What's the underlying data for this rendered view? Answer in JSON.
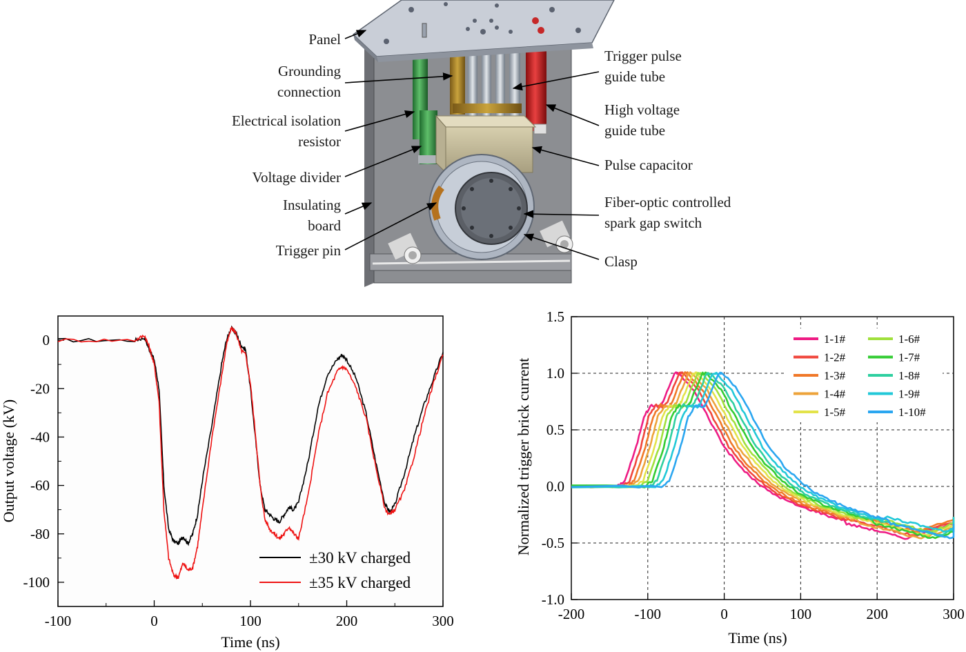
{
  "diagram": {
    "labels": [
      {
        "id": "panel",
        "text": "Panel"
      },
      {
        "id": "grounding-1",
        "text": "Grounding"
      },
      {
        "id": "grounding-2",
        "text": "connection"
      },
      {
        "id": "isolation-1",
        "text": "Electrical isolation"
      },
      {
        "id": "isolation-2",
        "text": "resistor"
      },
      {
        "id": "divider",
        "text": "Voltage divider"
      },
      {
        "id": "insulating-1",
        "text": "Insulating"
      },
      {
        "id": "insulating-2",
        "text": "board"
      },
      {
        "id": "trigger-pin",
        "text": "Trigger pin"
      },
      {
        "id": "trigger-tube-1",
        "text": "Trigger pulse"
      },
      {
        "id": "trigger-tube-2",
        "text": "guide tube"
      },
      {
        "id": "hv-tube-1",
        "text": "High voltage"
      },
      {
        "id": "hv-tube-2",
        "text": "guide tube"
      },
      {
        "id": "capacitor",
        "text": "Pulse capacitor"
      },
      {
        "id": "switch-1",
        "text": "Fiber-optic controlled"
      },
      {
        "id": "switch-2",
        "text": "spark gap switch"
      },
      {
        "id": "clasp",
        "text": "Clasp"
      }
    ]
  },
  "chart_data": [
    {
      "type": "line",
      "xlabel": "Time (ns)",
      "ylabel": "Output voltage (kV)",
      "xlim": [
        -100,
        300
      ],
      "ylim": [
        -110,
        10
      ],
      "xticks": [
        -100,
        0,
        100,
        200,
        300
      ],
      "yticks": [
        0,
        -20,
        -40,
        -60,
        -80,
        -100
      ],
      "grid": false,
      "legend_position": "bottom-right",
      "series": [
        {
          "name": "±30 kV charged",
          "color": "#000000",
          "x": [
            -100,
            -20,
            -10,
            -5,
            0,
            5,
            10,
            15,
            20,
            25,
            30,
            35,
            40,
            45,
            50,
            60,
            70,
            75,
            80,
            85,
            90,
            95,
            100,
            105,
            110,
            115,
            120,
            125,
            130,
            135,
            140,
            145,
            150,
            160,
            170,
            180,
            190,
            195,
            200,
            210,
            220,
            230,
            240,
            245,
            250,
            260,
            270,
            280,
            290,
            300
          ],
          "y": [
            0,
            0,
            1,
            -4,
            -8,
            -20,
            -60,
            -78,
            -83,
            -84,
            -81,
            -84,
            -80,
            -72,
            -58,
            -35,
            -10,
            0,
            5,
            3,
            -2,
            -4,
            -20,
            -40,
            -60,
            -70,
            -72,
            -74,
            -75,
            -72,
            -69,
            -70,
            -67,
            -50,
            -28,
            -14,
            -8,
            -6,
            -8,
            -16,
            -30,
            -50,
            -68,
            -71,
            -68,
            -55,
            -40,
            -27,
            -16,
            -5
          ]
        },
        {
          "name": "±35 kV charged",
          "color": "#ee1111",
          "x": [
            -100,
            -20,
            -10,
            -5,
            0,
            5,
            10,
            15,
            20,
            25,
            30,
            35,
            40,
            45,
            50,
            60,
            70,
            75,
            80,
            85,
            90,
            95,
            100,
            105,
            110,
            115,
            120,
            125,
            130,
            135,
            140,
            145,
            150,
            160,
            170,
            180,
            190,
            195,
            200,
            210,
            220,
            230,
            240,
            245,
            250,
            260,
            270,
            280,
            290,
            300
          ],
          "y": [
            0,
            0,
            2,
            -3,
            -10,
            -25,
            -70,
            -90,
            -97,
            -98,
            -92,
            -95,
            -94,
            -85,
            -70,
            -40,
            -15,
            -2,
            5,
            3,
            -4,
            -6,
            -18,
            -38,
            -60,
            -74,
            -78,
            -80,
            -82,
            -80,
            -77,
            -80,
            -82,
            -64,
            -40,
            -22,
            -13,
            -11,
            -12,
            -20,
            -32,
            -52,
            -70,
            -72,
            -70,
            -62,
            -48,
            -32,
            -18,
            -6
          ]
        }
      ]
    },
    {
      "type": "line",
      "xlabel": "Time (ns)",
      "ylabel": "Normalized trigger brick current",
      "xlim": [
        -200,
        300
      ],
      "ylim": [
        -1.0,
        1.5
      ],
      "xticks": [
        -200,
        -100,
        0,
        100,
        200,
        300
      ],
      "yticks": [
        1.5,
        1.0,
        0.5,
        0.0,
        -0.5,
        -1.0
      ],
      "ytick_labels": [
        "1.5",
        "1.0",
        "0.5",
        "0.0",
        "-0.5",
        "-1.0"
      ],
      "grid": true,
      "legend_position": "top-right",
      "series": [
        {
          "name": "1-1#",
          "color": "#ee1c84",
          "shift": 0
        },
        {
          "name": "1-2#",
          "color": "#f0463c",
          "shift": 6
        },
        {
          "name": "1-3#",
          "color": "#f07828",
          "shift": 12
        },
        {
          "name": "1-4#",
          "color": "#eda33a",
          "shift": 18
        },
        {
          "name": "1-5#",
          "color": "#e3e34a",
          "shift": 24
        },
        {
          "name": "1-6#",
          "color": "#a0e03c",
          "shift": 30
        },
        {
          "name": "1-7#",
          "color": "#33cc33",
          "shift": 36
        },
        {
          "name": "1-8#",
          "color": "#2ecfa0",
          "shift": 42
        },
        {
          "name": "1-9#",
          "color": "#22c8d8",
          "shift": 50
        },
        {
          "name": "1-10#",
          "color": "#2aa6f0",
          "shift": 58
        }
      ],
      "base_curve": {
        "x": [
          -200,
          -140,
          -130,
          -115,
          -105,
          -95,
          -85,
          -80,
          -65,
          -60,
          -40,
          -20,
          0,
          20,
          40,
          60,
          80,
          100,
          120,
          140,
          160,
          180,
          200,
          220,
          240,
          260,
          300
        ],
        "y": [
          0.0,
          0.0,
          0.05,
          0.35,
          0.62,
          0.72,
          0.7,
          0.75,
          1.0,
          1.0,
          0.85,
          0.6,
          0.35,
          0.18,
          0.05,
          -0.05,
          -0.12,
          -0.18,
          -0.22,
          -0.27,
          -0.3,
          -0.33,
          -0.36,
          -0.4,
          -0.43,
          -0.38,
          -0.3
        ]
      }
    }
  ]
}
